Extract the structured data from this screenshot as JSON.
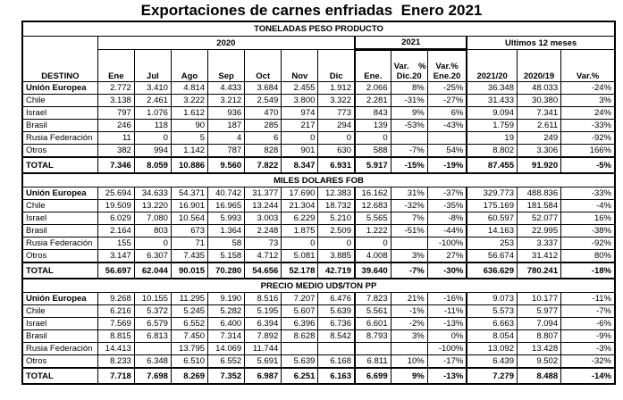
{
  "title": "Exportaciones de carnes enfriadas  Enero 2021",
  "header": {
    "groups": {
      "g2020": "2020",
      "g2021": "2021",
      "g12m": "Ultimos 12 meses"
    },
    "columns": [
      {
        "label": "DESTINO"
      },
      {
        "label": "Ene"
      },
      {
        "label": "Jul"
      },
      {
        "label": "Ago"
      },
      {
        "label": "Sep"
      },
      {
        "label": "Oct"
      },
      {
        "label": "Nov"
      },
      {
        "label": "Dic"
      },
      {
        "label": "Ene."
      },
      {
        "label": "Var.    %",
        "label2": "Dic.20"
      },
      {
        "label": "Var.%",
        "label2": "Ene.20"
      },
      {
        "label": "2021/20"
      },
      {
        "label": "2020/19"
      },
      {
        "label": "Var.%"
      }
    ]
  },
  "sections": [
    {
      "title": "TONELADAS PESO PRODUCTO",
      "rows": [
        {
          "dest": "Unión Europea",
          "bold": true,
          "values": [
            "2.772",
            "3.410",
            "4.814",
            "4.433",
            "3.684",
            "2.455",
            "1.912",
            "2.066",
            "8%",
            "-25%",
            "36.348",
            "48.033",
            "-24%"
          ]
        },
        {
          "dest": "Chile",
          "values": [
            "3.138",
            "2.461",
            "3.222",
            "3.212",
            "2.549",
            "3.800",
            "3.322",
            "2.281",
            "-31%",
            "-27%",
            "31.433",
            "30.380",
            "3%"
          ]
        },
        {
          "dest": "Israel",
          "values": [
            "797",
            "1.076",
            "1.612",
            "936",
            "470",
            "974",
            "773",
            "843",
            "9%",
            "6%",
            "9.094",
            "7.341",
            "24%"
          ]
        },
        {
          "dest": "Brasil",
          "values": [
            "246",
            "118",
            "90",
            "187",
            "285",
            "217",
            "294",
            "139",
            "-53%",
            "-43%",
            "1.759",
            "2.611",
            "-33%"
          ]
        },
        {
          "dest": "Rusia Federación",
          "values": [
            "11",
            "0",
            "5",
            "4",
            "6",
            "0",
            "0",
            "0",
            "",
            "",
            "19",
            "249",
            "-92%"
          ]
        },
        {
          "dest": "Otros",
          "values": [
            "382",
            "994",
            "1.142",
            "787",
            "828",
            "901",
            "630",
            "588",
            "-7%",
            "54%",
            "8.802",
            "3.306",
            "166%"
          ]
        }
      ],
      "total": {
        "dest": "TOTAL",
        "values": [
          "7.346",
          "8.059",
          "10.886",
          "9.560",
          "7.822",
          "8.347",
          "6.931",
          "5.917",
          "-15%",
          "-19%",
          "87.455",
          "91.920",
          "-5%"
        ]
      }
    },
    {
      "title": "MILES DOLARES FOB",
      "rows": [
        {
          "dest": "Unión Europea",
          "bold": true,
          "values": [
            "25.694",
            "34.633",
            "54.371",
            "40.742",
            "31.377",
            "17.690",
            "12.383",
            "16.162",
            "31%",
            "-37%",
            "329.773",
            "488.836",
            "-33%"
          ]
        },
        {
          "dest": "Chile",
          "values": [
            "19.509",
            "13.220",
            "16.901",
            "16.965",
            "13.244",
            "21.304",
            "18.732",
            "12.683",
            "-32%",
            "-35%",
            "175.169",
            "181.584",
            "-4%"
          ]
        },
        {
          "dest": "Israel",
          "values": [
            "6.029",
            "7.080",
            "10.564",
            "5.993",
            "3.003",
            "6.229",
            "5.210",
            "5.565",
            "7%",
            "-8%",
            "60.597",
            "52.077",
            "16%"
          ]
        },
        {
          "dest": "Brasil",
          "values": [
            "2.164",
            "803",
            "673",
            "1.364",
            "2.248",
            "1.875",
            "2.509",
            "1.222",
            "-51%",
            "-44%",
            "14.163",
            "22.995",
            "-38%"
          ]
        },
        {
          "dest": "Rusia Federación",
          "values": [
            "155",
            "0",
            "71",
            "58",
            "73",
            "0",
            "0",
            "0",
            "",
            "-100%",
            "253",
            "3.337",
            "-92%"
          ]
        },
        {
          "dest": "Otros",
          "values": [
            "3.147",
            "6.307",
            "7.435",
            "5.158",
            "4.712",
            "5.081",
            "3.885",
            "4.008",
            "3%",
            "27%",
            "56.674",
            "31.412",
            "80%"
          ]
        }
      ],
      "total": {
        "dest": "TOTAL",
        "values": [
          "56.697",
          "62.044",
          "90.015",
          "70.280",
          "54.656",
          "52.178",
          "42.719",
          "39.640",
          "-7%",
          "-30%",
          "636.629",
          "780.241",
          "-18%"
        ]
      }
    },
    {
      "title": "PRECIO MEDIO UD$/TON PP",
      "rows": [
        {
          "dest": "Unión Europea",
          "bold": true,
          "values": [
            "9.268",
            "10.155",
            "11.295",
            "9.190",
            "8.516",
            "7.207",
            "6.476",
            "7.823",
            "21%",
            "-16%",
            "9.073",
            "10.177",
            "-11%"
          ]
        },
        {
          "dest": "Chile",
          "values": [
            "6.216",
            "5.372",
            "5.245",
            "5.282",
            "5.195",
            "5.607",
            "5.639",
            "5.561",
            "-1%",
            "-11%",
            "5.573",
            "5.977",
            "-7%"
          ]
        },
        {
          "dest": "Israel",
          "values": [
            "7.569",
            "6.579",
            "6.552",
            "6.400",
            "6.394",
            "6.396",
            "6.736",
            "6.601",
            "-2%",
            "-13%",
            "6.663",
            "7.094",
            "-6%"
          ]
        },
        {
          "dest": "Brasil",
          "values": [
            "8.815",
            "6.813",
            "7.450",
            "7.314",
            "7.892",
            "8.628",
            "8.542",
            "8.793",
            "3%",
            "0%",
            "8.054",
            "8.807",
            "-9%"
          ]
        },
        {
          "dest": "Rusia Federación",
          "values": [
            "14.413",
            "",
            "13.795",
            "14.069",
            "11.744",
            "",
            "",
            "",
            "",
            "-100%",
            "13.092",
            "13.428",
            "-3%"
          ]
        },
        {
          "dest": "Otros",
          "values": [
            "8.233",
            "6.348",
            "6.510",
            "6.552",
            "5.691",
            "5.639",
            "6.168",
            "6.811",
            "10%",
            "-17%",
            "6.439",
            "9.502",
            "-32%"
          ]
        }
      ],
      "total": {
        "dest": "TOTAL",
        "values": [
          "7.718",
          "7.698",
          "8.269",
          "7.352",
          "6.987",
          "6.251",
          "6.163",
          "6.699",
          "9%",
          "-13%",
          "7.279",
          "8.488",
          "-14%"
        ]
      }
    }
  ]
}
